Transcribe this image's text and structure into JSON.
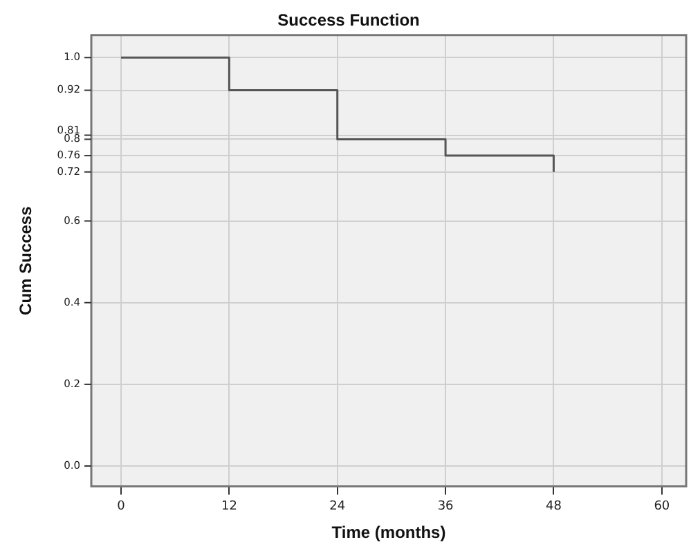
{
  "chart_data": {
    "type": "step",
    "title": "Success Function",
    "xlabel": "Time (months)",
    "ylabel": "Cum Success",
    "x": [
      0,
      12,
      24,
      36,
      48
    ],
    "series": [
      {
        "color": "#555555",
        "values": [
          1.0,
          0.92,
          0.8,
          0.76,
          0.72
        ]
      }
    ],
    "xlim": [
      -3.3,
      62.7
    ],
    "xticks": [
      0,
      12,
      24,
      36,
      48,
      60
    ],
    "ylim": [
      -0.05,
      1.055
    ],
    "yticks": [
      {
        "value": 0,
        "label": "0.0"
      },
      0.2,
      0.4,
      0.6,
      0.72,
      0.76,
      0.8,
      0.81,
      0.92,
      {
        "value": 1,
        "label": "1.0"
      }
    ],
    "grid": true,
    "legend": false,
    "marker": "none",
    "line_style": "solid"
  }
}
